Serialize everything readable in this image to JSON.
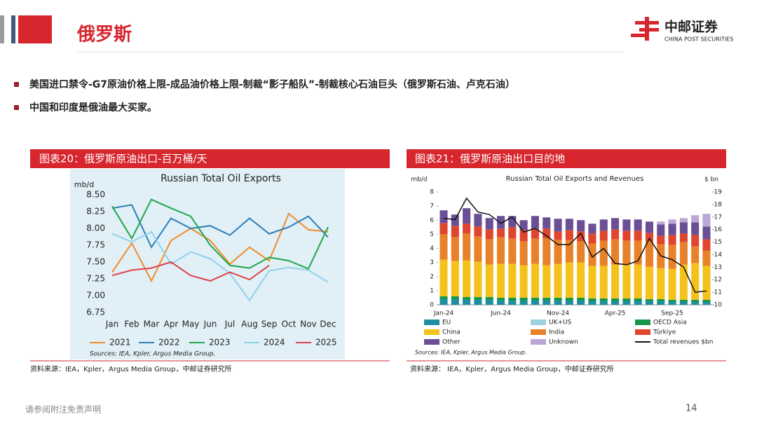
{
  "header": {
    "title": "俄罗斯"
  },
  "logo": {
    "name": "中邮证券",
    "subtitle": "CHINA POST SECURITIES"
  },
  "bullets": [
    "美国进口禁令-G7原油价格上限-成品油价格上限-制裁“影子船队”-制裁核心石油巨头（俄罗斯石油、卢克石油）",
    "中国和印度是俄油最大买家。"
  ],
  "footer": {
    "disclaimer": "请参阅附注免责声明",
    "page": "14"
  },
  "chart_data": [
    {
      "type": "line",
      "caption": "图表20：俄罗斯原油出口-百万桶/天",
      "title": "Russian Total Oil Exports",
      "y_label": "mb/d",
      "source_note": "Sources: IEA, Kpler, Argus Media Group.",
      "source": "资料来源：IEA，Kpler，Argus Media Group，中邮证券研究所",
      "categories": [
        "Jan",
        "Feb",
        "Mar",
        "Apr",
        "May",
        "Jun",
        "Jul",
        "Aug",
        "Sep",
        "Oct",
        "Nov",
        "Dec"
      ],
      "ylim": [
        6.75,
        8.5
      ],
      "yticks": [
        6.75,
        {
          "value": 7,
          "label": "7.00"
        },
        7.25,
        {
          "value": 7.5,
          "label": "7.50"
        },
        7.75,
        {
          "value": 8,
          "label": "8.00"
        },
        8.25,
        {
          "value": 8.5,
          "label": "8.50"
        }
      ],
      "grid": false,
      "legend": "bottom",
      "series": [
        {
          "name": "2021",
          "color": "#f28c28",
          "values": [
            7.35,
            7.78,
            7.22,
            7.82,
            8.0,
            7.82,
            7.47,
            7.72,
            7.52,
            8.22,
            7.98,
            7.95
          ]
        },
        {
          "name": "2022",
          "color": "#2a7fb8",
          "values": [
            8.3,
            8.35,
            7.72,
            8.15,
            8.0,
            8.04,
            7.9,
            8.15,
            7.92,
            8.02,
            8.18,
            7.87
          ]
        },
        {
          "name": "2023",
          "color": "#1fa84a",
          "values": [
            8.33,
            7.85,
            8.43,
            8.3,
            8.18,
            7.75,
            7.45,
            7.41,
            7.57,
            7.52,
            7.4,
            8.02
          ]
        },
        {
          "name": "2024",
          "color": "#8fd3ea",
          "values": [
            7.92,
            7.8,
            7.95,
            7.47,
            7.65,
            7.55,
            7.33,
            6.93,
            7.37,
            7.42,
            7.38,
            7.2
          ]
        },
        {
          "name": "2025",
          "color": "#e0414a",
          "values": [
            7.3,
            7.38,
            7.41,
            7.5,
            7.3,
            7.22,
            7.35,
            7.24,
            7.45,
            null,
            null,
            null
          ]
        }
      ]
    },
    {
      "type": "bar",
      "stacked": true,
      "caption": "图表21：俄罗斯原油出口目的地",
      "title": "Russian Total Oil Exports and Revenues",
      "y_label": "mb/d",
      "y2_label": "$ bn",
      "source_note": "Sources: IEA, Kpler, Argus Media Group.",
      "source": "资料来源： IEA，Kpler，Argus Media Group，中邮证券研究所",
      "categories": [
        "Jan-24",
        null,
        null,
        null,
        null,
        "Jun-24",
        null,
        null,
        null,
        null,
        "Nov-24",
        null,
        null,
        null,
        null,
        "Apr-25",
        null,
        null,
        null,
        null,
        "Sep-25",
        null,
        null,
        null
      ],
      "ylim": [
        0,
        8
      ],
      "yticks": [
        0,
        1,
        2,
        3,
        4,
        5,
        6,
        7,
        8
      ],
      "y2lim": [
        10,
        19
      ],
      "y2ticks": [
        10,
        11,
        12,
        13,
        14,
        15,
        16,
        17,
        18,
        19
      ],
      "grid": false,
      "legend": "bottom",
      "series": [
        {
          "name": "EU",
          "color": "#1f8ea3",
          "values": [
            0.4,
            0.4,
            0.35,
            0.35,
            0.35,
            0.3,
            0.3,
            0.3,
            0.3,
            0.3,
            0.3,
            0.3,
            0.3,
            0.25,
            0.25,
            0.25,
            0.25,
            0.25,
            0.25,
            0.25,
            0.2,
            0.2,
            0.2,
            0.2
          ]
        },
        {
          "name": "UK+US",
          "color": "#9fd0e0",
          "values": [
            0,
            0,
            0,
            0,
            0,
            0,
            0,
            0,
            0,
            0,
            0,
            0,
            0,
            0,
            0,
            0,
            0,
            0,
            0,
            0,
            0,
            0,
            0,
            0
          ]
        },
        {
          "name": "OECD Asia",
          "color": "#16964a",
          "values": [
            0.2,
            0.2,
            0.2,
            0.2,
            0.2,
            0.2,
            0.2,
            0.2,
            0.2,
            0.2,
            0.2,
            0.2,
            0.2,
            0.2,
            0.2,
            0.2,
            0.2,
            0.2,
            0.15,
            0.15,
            0.15,
            0.15,
            0.15,
            0.15
          ]
        },
        {
          "name": "China",
          "color": "#f5c21b",
          "values": [
            2.6,
            2.5,
            2.6,
            2.5,
            2.3,
            2.4,
            2.4,
            2.3,
            2.4,
            2.3,
            2.4,
            2.5,
            2.5,
            2.3,
            2.3,
            2.4,
            2.4,
            2.4,
            2.3,
            2.2,
            2.2,
            2.5,
            2.6,
            2.4
          ]
        },
        {
          "name": "India",
          "color": "#e8822a",
          "values": [
            1.8,
            1.7,
            1.9,
            1.8,
            1.8,
            1.9,
            1.8,
            1.7,
            1.8,
            1.9,
            1.7,
            1.6,
            1.5,
            1.6,
            1.8,
            1.8,
            1.7,
            1.7,
            1.8,
            1.7,
            1.7,
            1.6,
            1.2,
            1.1
          ]
        },
        {
          "name": "Türkiye",
          "color": "#e0452e",
          "values": [
            0.8,
            0.8,
            0.7,
            0.7,
            0.7,
            0.6,
            0.8,
            0.8,
            0.7,
            0.7,
            0.6,
            0.7,
            0.7,
            0.7,
            0.7,
            0.7,
            0.7,
            0.7,
            0.6,
            0.6,
            0.7,
            0.6,
            0.8,
            0.8
          ]
        },
        {
          "name": "Other",
          "color": "#6b4f96",
          "values": [
            0.9,
            0.8,
            1.1,
            0.9,
            0.8,
            0.9,
            0.8,
            0.7,
            0.9,
            0.8,
            0.9,
            0.8,
            0.8,
            0.7,
            0.8,
            0.8,
            0.8,
            0.8,
            0.8,
            0.8,
            0.8,
            0.8,
            0.9,
            0.9
          ]
        },
        {
          "name": "Unknown",
          "color": "#bba6d4",
          "values": [
            0,
            0,
            0,
            0,
            0,
            0,
            0,
            0,
            0,
            0,
            0,
            0,
            0,
            0,
            0,
            0,
            0,
            0,
            0,
            0.2,
            0.3,
            0.3,
            0.5,
            0.9
          ]
        },
        {
          "name": "Total revenues $bn",
          "color": "#111111",
          "axis": "y2",
          "values": [
            16.9,
            16.8,
            18.5,
            17.4,
            17.2,
            16.5,
            17.0,
            15.8,
            16.1,
            15.5,
            14.8,
            14.8,
            15.7,
            13.8,
            14.5,
            13.3,
            13.2,
            13.5,
            15.3,
            13.9,
            13.6,
            13.0,
            11.0,
            11.1
          ]
        }
      ]
    }
  ]
}
